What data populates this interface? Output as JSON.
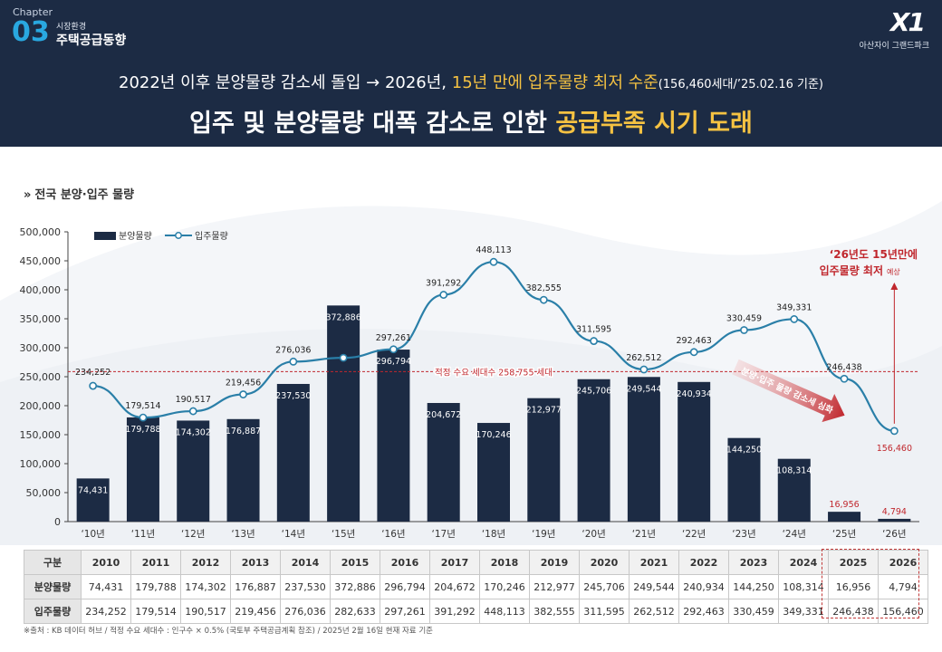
{
  "header": {
    "chapter_label": "Chapter",
    "chapter_num": "03",
    "section_small": "시장환경",
    "section_title": "주택공급동향",
    "brand_logo": "X1",
    "brand_name": "아산자이 그랜드파크",
    "headline1_a": "2022년 이후 분양물량 감소세 돌입 → 2026년, ",
    "headline1_b": "15년 만에 입주물량 최저 수준",
    "headline1_c": "(156,460세대/’25.02.16 기준)",
    "headline2_a": "입주 및 분양물량 대폭 감소로 인한 ",
    "headline2_b": "공급부족 시기 도래"
  },
  "chart_title": "전국 분양·입주 물량",
  "chart_title_chevron": "»",
  "chart_data": {
    "type": "bar",
    "categories": [
      "‘10년",
      "‘11년",
      "‘12년",
      "‘13년",
      "‘14년",
      "‘15년",
      "‘16년",
      "‘17년",
      "‘18년",
      "‘19년",
      "‘20년",
      "‘21년",
      "‘22년",
      "‘23년",
      "‘24년",
      "‘25년",
      "‘26년"
    ],
    "series": [
      {
        "name": "분양물량",
        "type": "bar",
        "values": [
          74431,
          179788,
          174302,
          176887,
          237530,
          372886,
          296794,
          204672,
          170246,
          212977,
          245706,
          249544,
          240934,
          144250,
          108314,
          16956,
          4794
        ]
      },
      {
        "name": "입주물량",
        "type": "line",
        "values": [
          234252,
          179514,
          190517,
          219456,
          276036,
          282633,
          297261,
          391292,
          448113,
          382555,
          311595,
          262512,
          292463,
          330459,
          349331,
          246438,
          156460
        ]
      }
    ],
    "ylim": [
      0,
      500000
    ],
    "yticks": [
      "0",
      "50,000",
      "100,000",
      "150,000",
      "200,000",
      "250,000",
      "300,000",
      "350,000",
      "400,000",
      "450,000",
      "500,000"
    ],
    "bar_labels": [
      "74,431",
      "179,788",
      "174,302",
      "176,887",
      "237,530",
      "372,886",
      "296,794",
      "204,672",
      "170,246",
      "212,977",
      "245,706",
      "249,544",
      "240,934",
      "144,250",
      "108,314",
      "16,956",
      "4,794"
    ],
    "line_labels": [
      "234,252",
      "179,514",
      "190,517",
      "219,456",
      "276,036",
      "",
      "297,261",
      "391,292",
      "448,113",
      "382,555",
      "311,595",
      "262,512",
      "292,463",
      "330,459",
      "349,331",
      "246,438",
      "156,460"
    ],
    "reference_line": {
      "value": 258755,
      "label": "적정 수요 세대수 258,755 세대"
    },
    "annotation_main": "‘26년도 15년만에",
    "annotation_main2": "입주물량 최저",
    "annotation_small": "예상",
    "arrow_text": "분양·입주 물량 감소세 심화",
    "grid": false,
    "legend": "top-left"
  },
  "table": {
    "header_label": "구분",
    "years": [
      "2010",
      "2011",
      "2012",
      "2013",
      "2014",
      "2015",
      "2016",
      "2017",
      "2018",
      "2019",
      "2020",
      "2021",
      "2022",
      "2023",
      "2024",
      "2025",
      "2026"
    ],
    "rows": [
      {
        "label": "분양물량",
        "values": [
          "74,431",
          "179,788",
          "174,302",
          "176,887",
          "237,530",
          "372,886",
          "296,794",
          "204,672",
          "170,246",
          "212,977",
          "245,706",
          "249,544",
          "240,934",
          "144,250",
          "108,314",
          "16,956",
          "4,794"
        ]
      },
      {
        "label": "입주물량",
        "values": [
          "234,252",
          "179,514",
          "190,517",
          "219,456",
          "276,036",
          "282,633",
          "297,261",
          "391,292",
          "448,113",
          "382,555",
          "311,595",
          "262,512",
          "292,463",
          "330,459",
          "349,331",
          "246,438",
          "156,460"
        ]
      }
    ]
  },
  "footnote": "※출처 : KB 데이터 허브 / 적정 수요 세대수 : 인구수 × 0.5% (국토부 주택공급계획 참조) / 2025년 2월 16일 현재 자료 기준",
  "colors": {
    "navy": "#1c2b44",
    "bar": "#1c2b44",
    "line": "#2a7fa8",
    "accent_yellow": "#f5c242",
    "red": "#c0272d",
    "chapter_blue": "#29a8e0"
  }
}
